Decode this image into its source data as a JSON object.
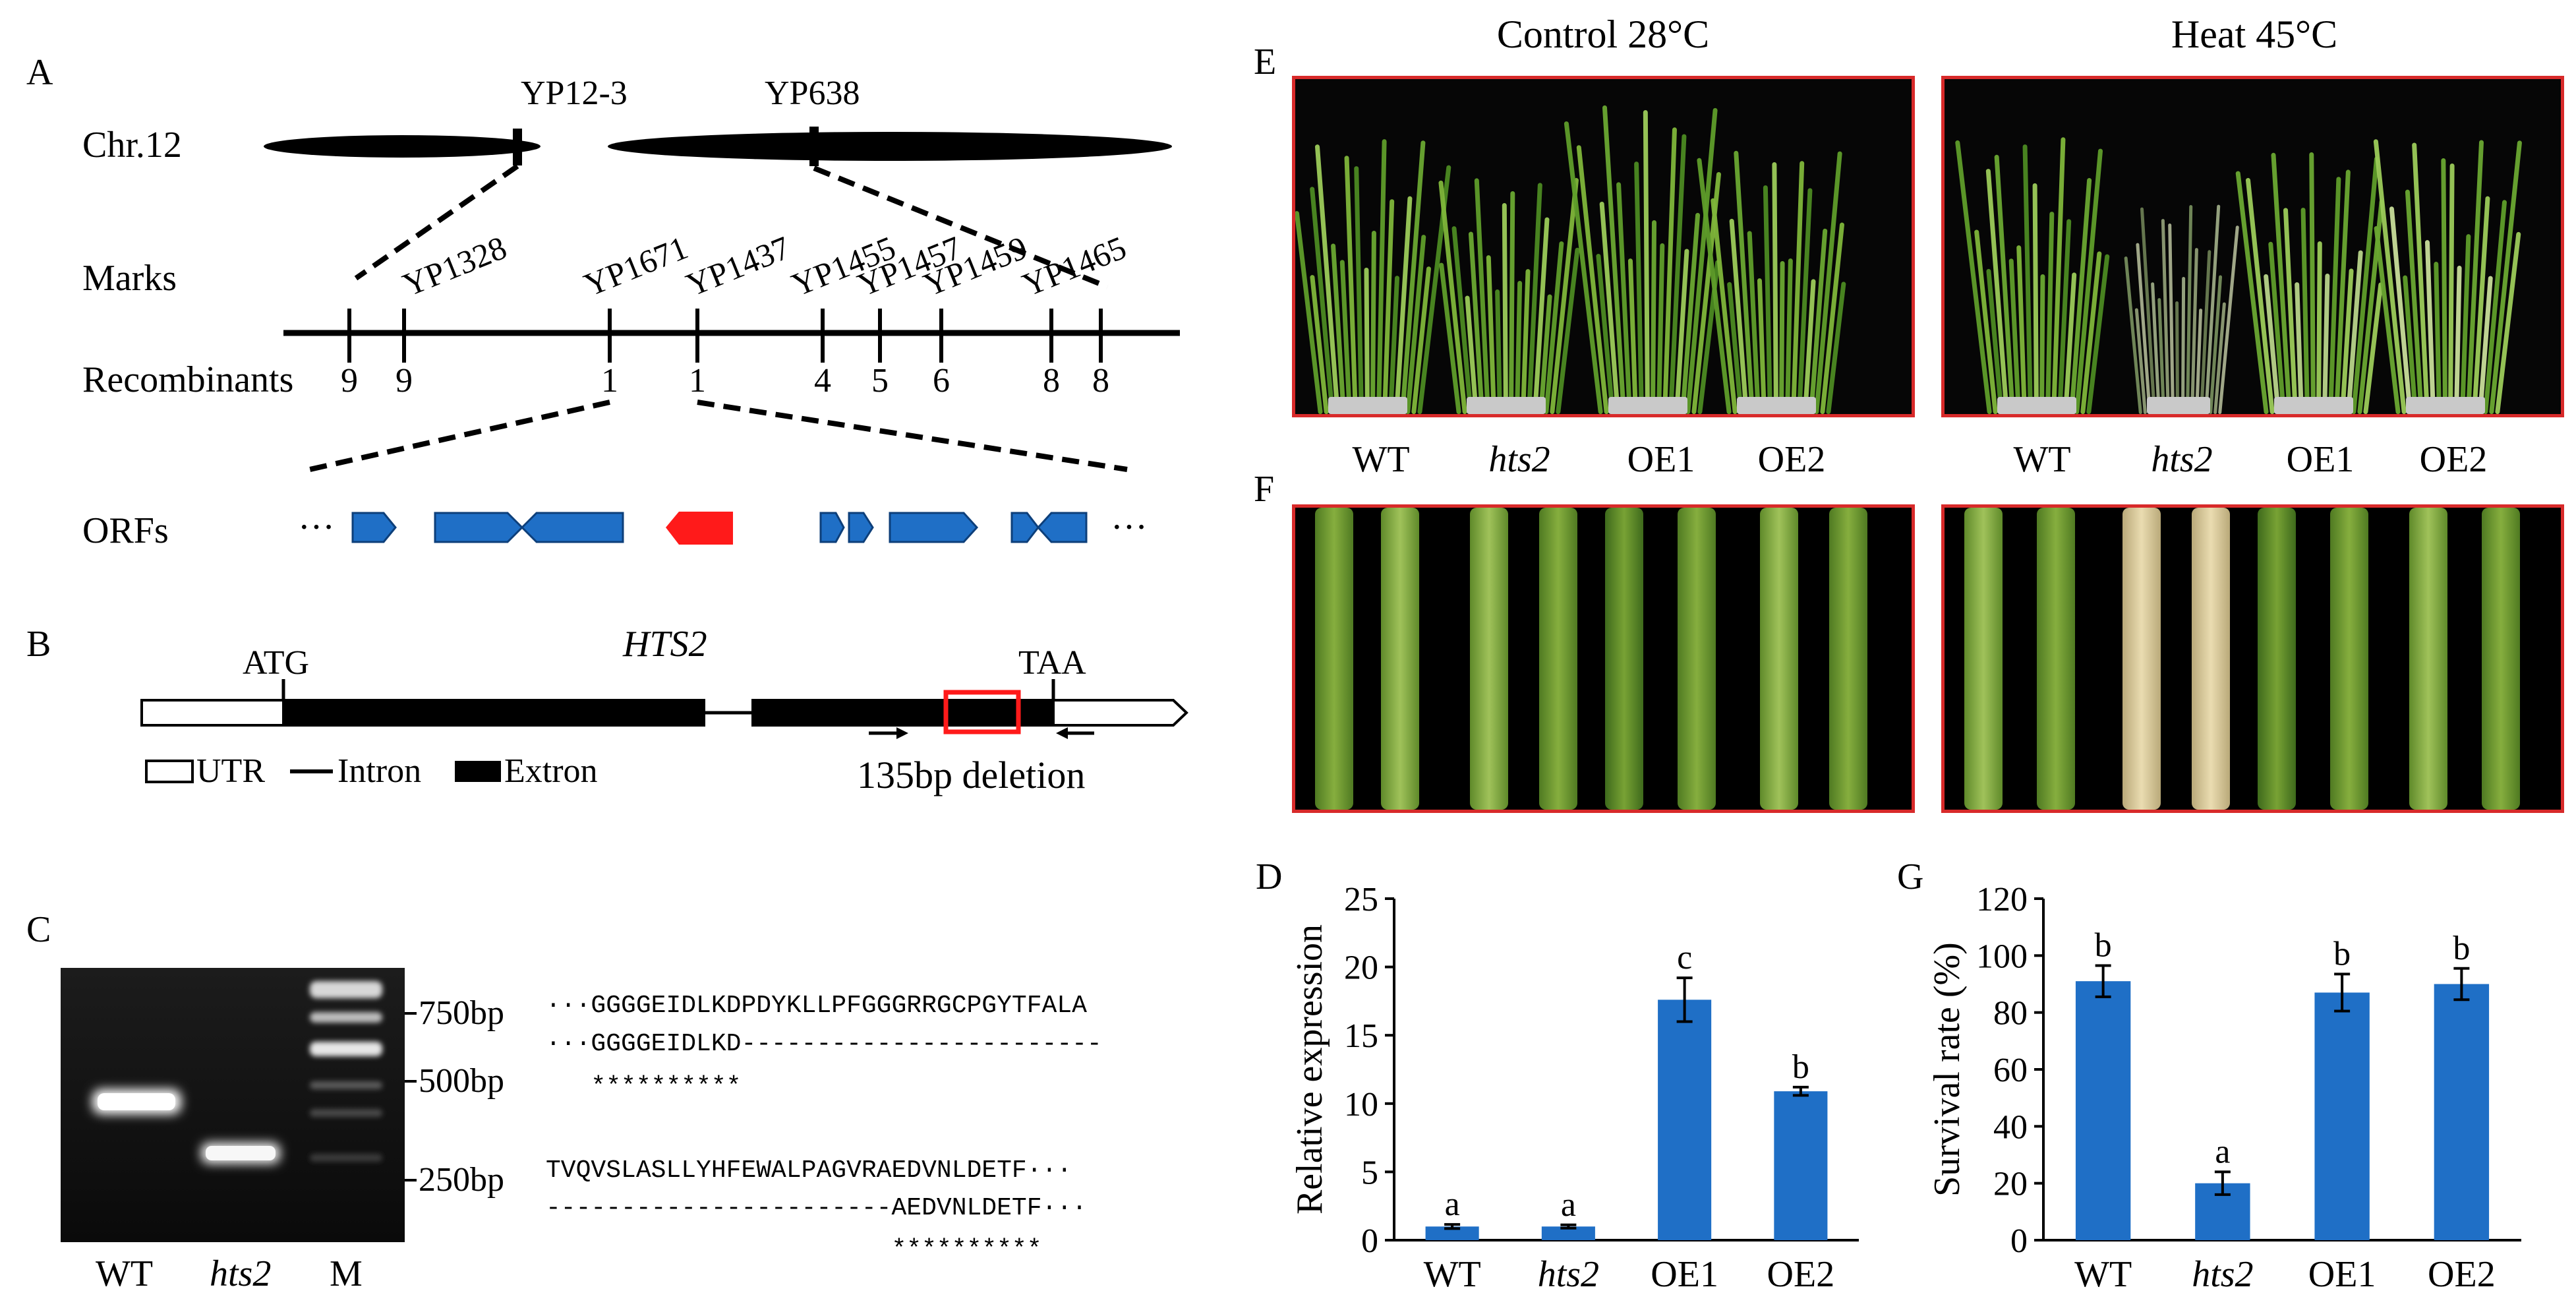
{
  "panels": {
    "A": {
      "label": "A",
      "chromosome": "Chr.12",
      "chr_markers": [
        "YP12-3",
        "YP638"
      ],
      "row_labels": {
        "marks": "Marks",
        "recombinants": "Recombinants",
        "orfs": "ORFs"
      },
      "fine_markers": [
        "YP1328",
        "YP1671",
        "YP1437",
        "YP1455",
        "YP1457",
        "YP1459",
        "YP1465"
      ],
      "recombinant_counts": [
        "9",
        "9",
        "1",
        "1",
        "4",
        "5",
        "6",
        "8",
        "8"
      ],
      "orf_ellipsis": "···",
      "orf_colors": {
        "normal": "#1f6fc6",
        "candidate": "#ff1a1a"
      }
    },
    "B": {
      "label": "B",
      "gene": "HTS2",
      "start_codon": "ATG",
      "stop_codon": "TAA",
      "deletion": "135bp deletion",
      "legend": [
        "UTR",
        "Intron",
        "Extron"
      ]
    },
    "C": {
      "label": "C",
      "lanes": [
        "WT",
        "hts2",
        "M"
      ],
      "ladder": [
        "750bp",
        "500bp",
        "250bp"
      ],
      "alignment": [
        "···GGGGEIDLKDPDYKLLPFGGGRRGCPGYTFALA",
        "···GGGGEIDLKD------------------------",
        "   **********",
        "TVQVSLASLLYHFEWALPAGVRAEDVNLDETF···",
        "-----------------------AEDVNLDETF···",
        "                       **********"
      ]
    },
    "D": {
      "label": "D",
      "chart_data": {
        "type": "bar",
        "categories": [
          "WT",
          "hts2",
          "OE1",
          "OE2"
        ],
        "values": [
          1.0,
          1.0,
          17.6,
          10.9
        ],
        "errors": [
          0.15,
          0.12,
          1.6,
          0.3
        ],
        "letters": [
          "a",
          "a",
          "c",
          "b"
        ],
        "ylabel": "Relative expression",
        "ylim": [
          0,
          25
        ],
        "yticks": [
          "0",
          "5",
          "10",
          "15",
          "20",
          "25"
        ],
        "color": "#1f6fc6"
      }
    },
    "E": {
      "label": "E",
      "conditions": [
        "Control 28°C",
        "Heat 45°C"
      ],
      "genotypes": [
        "WT",
        "hts2",
        "OE1",
        "OE2"
      ]
    },
    "F": {
      "label": "F"
    },
    "G": {
      "label": "G",
      "chart_data": {
        "type": "bar",
        "categories": [
          "WT",
          "hts2",
          "OE1",
          "OE2"
        ],
        "values": [
          91,
          20,
          87,
          90
        ],
        "errors": [
          5.5,
          4,
          6.5,
          5.5
        ],
        "letters": [
          "b",
          "a",
          "b",
          "b"
        ],
        "ylabel": "Survival rate (%)",
        "ylim": [
          0,
          120
        ],
        "yticks": [
          "0",
          "20",
          "40",
          "60",
          "80",
          "100",
          "120"
        ],
        "color": "#1f6fc6"
      }
    }
  }
}
